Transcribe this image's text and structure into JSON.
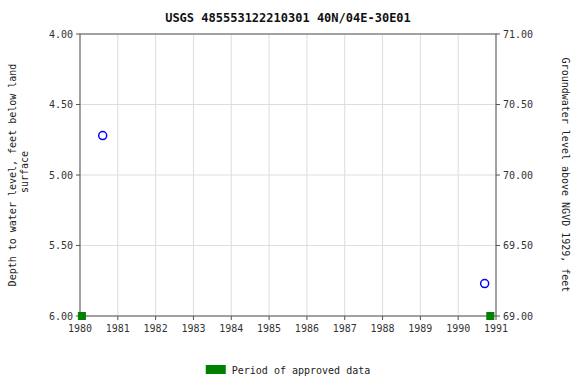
{
  "chart_data": {
    "type": "scatter",
    "title": "USGS 485553122210301 40N/04E-30E01",
    "y_label": "Depth to water level, feet below land\n surface",
    "y2_label": "Groundwater level above NGVD 1929, feet",
    "xlim": [
      1980,
      1991
    ],
    "xticks": [
      1980,
      1981,
      1982,
      1983,
      1984,
      1985,
      1986,
      1987,
      1988,
      1989,
      1990,
      1991
    ],
    "ylim": [
      6.0,
      4.0
    ],
    "yticks": [
      {
        "value": 4.0,
        "label": "4.00"
      },
      {
        "value": 4.5,
        "label": "4.50"
      },
      {
        "value": 5.0,
        "label": "5.00"
      },
      {
        "value": 5.5,
        "label": "5.50"
      },
      {
        "value": 6.0,
        "label": "6.00"
      }
    ],
    "y2lim": [
      69.0,
      71.0
    ],
    "y2ticks": [
      {
        "value": 69.0,
        "label": "69.00"
      },
      {
        "value": 69.5,
        "label": "69.50"
      },
      {
        "value": 70.0,
        "label": "70.00"
      },
      {
        "value": 70.5,
        "label": "70.50"
      },
      {
        "value": 71.0,
        "label": "71.00"
      }
    ],
    "grid": true,
    "legend": "bottom",
    "series": [
      {
        "x": [
          1980.6,
          1990.7
        ],
        "values": [
          4.72,
          5.77
        ],
        "color": "#0000ff",
        "marker": "circle"
      },
      {
        "name": "Period of approved data",
        "x": [
          1980.05,
          1990.85
        ],
        "values": [
          6.0,
          6.0
        ],
        "color": "#008000",
        "marker": "square"
      }
    ]
  }
}
